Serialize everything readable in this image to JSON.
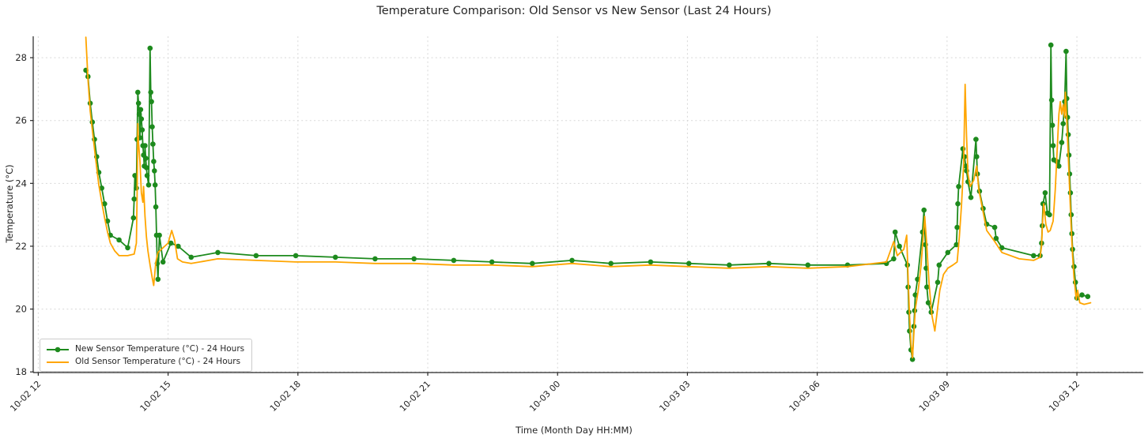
{
  "chart_data": {
    "type": "line",
    "title": "Temperature Comparison: Old Sensor vs New Sensor (Last 24 Hours)",
    "xlabel": "Time (Month Day HH:MM)",
    "ylabel": "Temperature (°C)",
    "x_unit": "minutes since 10-02 12:00",
    "xlim": [
      -7,
      1532
    ],
    "ylim": [
      17.98,
      28.68
    ],
    "grid": "dashed both axes",
    "legend_position": "lower left",
    "x_ticks": [
      {
        "t": 0,
        "label": "10-02 12"
      },
      {
        "t": 180,
        "label": "10-02 15"
      },
      {
        "t": 360,
        "label": "10-02 18"
      },
      {
        "t": 540,
        "label": "10-02 21"
      },
      {
        "t": 720,
        "label": "10-03 00"
      },
      {
        "t": 900,
        "label": "10-03 03"
      },
      {
        "t": 1080,
        "label": "10-03 06"
      },
      {
        "t": 1260,
        "label": "10-03 09"
      },
      {
        "t": 1440,
        "label": "10-03 12"
      }
    ],
    "y_ticks": [
      18,
      20,
      22,
      24,
      26,
      28
    ],
    "style": {
      "grid_color": "#d8d8d8",
      "axis_color": "#262626",
      "text_color": "#262626"
    },
    "series": [
      {
        "name": "New Sensor Temperature (°C) - 24 Hours",
        "color": "#1d8a1d",
        "marker": "circle",
        "data": [
          [
            66,
            27.6
          ],
          [
            69,
            27.4
          ],
          [
            72,
            26.55
          ],
          [
            75,
            25.95
          ],
          [
            78,
            25.4
          ],
          [
            81,
            24.85
          ],
          [
            84,
            24.35
          ],
          [
            88,
            23.85
          ],
          [
            92,
            23.35
          ],
          [
            96,
            22.8
          ],
          [
            100,
            22.35
          ],
          [
            112,
            22.2
          ],
          [
            124,
            21.95
          ],
          [
            132,
            22.9
          ],
          [
            133,
            23.5
          ],
          [
            134,
            24.25
          ],
          [
            136,
            23.85
          ],
          [
            137,
            25.4
          ],
          [
            138,
            26.9
          ],
          [
            139,
            26.55
          ],
          [
            140,
            26.2
          ],
          [
            141,
            25.45
          ],
          [
            142,
            26.35
          ],
          [
            143,
            26.05
          ],
          [
            144,
            25.7
          ],
          [
            145,
            25.2
          ],
          [
            146,
            24.9
          ],
          [
            147,
            24.55
          ],
          [
            148,
            25.2
          ],
          [
            149,
            24.8
          ],
          [
            150,
            24.5
          ],
          [
            151,
            24.25
          ],
          [
            153,
            23.95
          ],
          [
            155,
            28.3
          ],
          [
            156,
            26.9
          ],
          [
            157,
            26.6
          ],
          [
            158,
            25.8
          ],
          [
            159,
            25.25
          ],
          [
            160,
            24.7
          ],
          [
            161,
            24.4
          ],
          [
            162,
            23.95
          ],
          [
            163,
            23.25
          ],
          [
            164,
            22.35
          ],
          [
            165,
            21.45
          ],
          [
            166,
            20.95
          ],
          [
            168,
            22.35
          ],
          [
            173,
            21.5
          ],
          [
            184,
            22.1
          ],
          [
            194,
            22.0
          ],
          [
            212,
            21.65
          ],
          [
            249,
            21.8
          ],
          [
            302,
            21.7
          ],
          [
            357,
            21.7
          ],
          [
            412,
            21.65
          ],
          [
            467,
            21.6
          ],
          [
            521,
            21.6
          ],
          [
            576,
            21.55
          ],
          [
            629,
            21.5
          ],
          [
            685,
            21.45
          ],
          [
            740,
            21.55
          ],
          [
            794,
            21.45
          ],
          [
            849,
            21.5
          ],
          [
            902,
            21.45
          ],
          [
            958,
            21.4
          ],
          [
            1013,
            21.45
          ],
          [
            1067,
            21.4
          ],
          [
            1122,
            21.4
          ],
          [
            1176,
            21.45
          ],
          [
            1186,
            21.6
          ],
          [
            1188,
            22.45
          ],
          [
            1194,
            22.0
          ],
          [
            1205,
            21.4
          ],
          [
            1206,
            20.7
          ],
          [
            1207,
            19.9
          ],
          [
            1208,
            19.3
          ],
          [
            1210,
            18.7
          ],
          [
            1212,
            18.4
          ],
          [
            1214,
            19.45
          ],
          [
            1215,
            19.95
          ],
          [
            1216,
            20.45
          ],
          [
            1219,
            20.95
          ],
          [
            1226,
            22.45
          ],
          [
            1228,
            23.15
          ],
          [
            1230,
            22.05
          ],
          [
            1231,
            21.3
          ],
          [
            1232,
            20.7
          ],
          [
            1234,
            20.2
          ],
          [
            1238,
            19.9
          ],
          [
            1247,
            20.85
          ],
          [
            1249,
            21.4
          ],
          [
            1261,
            21.8
          ],
          [
            1273,
            22.05
          ],
          [
            1274,
            22.6
          ],
          [
            1275,
            23.35
          ],
          [
            1276,
            23.9
          ],
          [
            1282,
            25.1
          ],
          [
            1284,
            24.85
          ],
          [
            1286,
            24.55
          ],
          [
            1287,
            24.4
          ],
          [
            1289,
            24.05
          ],
          [
            1293,
            23.55
          ],
          [
            1300,
            25.4
          ],
          [
            1301,
            24.85
          ],
          [
            1302,
            24.3
          ],
          [
            1305,
            23.75
          ],
          [
            1310,
            23.2
          ],
          [
            1315,
            22.7
          ],
          [
            1326,
            22.6
          ],
          [
            1328,
            22.25
          ],
          [
            1336,
            21.95
          ],
          [
            1380,
            21.7
          ],
          [
            1389,
            21.7
          ],
          [
            1391,
            22.1
          ],
          [
            1392,
            22.65
          ],
          [
            1393,
            23.35
          ],
          [
            1396,
            23.7
          ],
          [
            1399,
            23.05
          ],
          [
            1402,
            23.0
          ],
          [
            1404,
            28.4
          ],
          [
            1405,
            26.65
          ],
          [
            1406,
            25.85
          ],
          [
            1407,
            25.2
          ],
          [
            1408,
            24.75
          ],
          [
            1412,
            24.7
          ],
          [
            1415,
            24.55
          ],
          [
            1419,
            25.3
          ],
          [
            1421,
            25.9
          ],
          [
            1423,
            26.6
          ],
          [
            1425,
            28.2
          ],
          [
            1426,
            26.7
          ],
          [
            1427,
            26.1
          ],
          [
            1428,
            25.55
          ],
          [
            1429,
            24.9
          ],
          [
            1430,
            24.3
          ],
          [
            1431,
            23.7
          ],
          [
            1432,
            23.0
          ],
          [
            1433,
            22.4
          ],
          [
            1434,
            21.9
          ],
          [
            1436,
            21.35
          ],
          [
            1438,
            20.85
          ],
          [
            1440,
            20.35
          ],
          [
            1447,
            20.45
          ],
          [
            1455,
            20.4
          ]
        ]
      },
      {
        "name": "Old Sensor Temperature (°C) - 24 Hours",
        "color": "#ffa500",
        "marker": "none",
        "data": [
          [
            66,
            28.65
          ],
          [
            69,
            27.3
          ],
          [
            72,
            26.3
          ],
          [
            75,
            25.7
          ],
          [
            78,
            25.1
          ],
          [
            81,
            24.5
          ],
          [
            84,
            23.95
          ],
          [
            88,
            23.4
          ],
          [
            92,
            22.9
          ],
          [
            96,
            22.45
          ],
          [
            100,
            22.1
          ],
          [
            106,
            21.85
          ],
          [
            112,
            21.7
          ],
          [
            124,
            21.7
          ],
          [
            133,
            21.75
          ],
          [
            136,
            22.1
          ],
          [
            137,
            23.6
          ],
          [
            138,
            25.9
          ],
          [
            139,
            25.3
          ],
          [
            141,
            24.7
          ],
          [
            143,
            23.7
          ],
          [
            145,
            23.4
          ],
          [
            146,
            23.9
          ],
          [
            148,
            22.95
          ],
          [
            150,
            22.3
          ],
          [
            152,
            21.85
          ],
          [
            155,
            21.4
          ],
          [
            158,
            21.0
          ],
          [
            160,
            20.75
          ],
          [
            163,
            21.5
          ],
          [
            166,
            21.8
          ],
          [
            180,
            22.1
          ],
          [
            185,
            22.5
          ],
          [
            189,
            22.2
          ],
          [
            193,
            21.6
          ],
          [
            200,
            21.5
          ],
          [
            212,
            21.45
          ],
          [
            249,
            21.6
          ],
          [
            302,
            21.55
          ],
          [
            357,
            21.5
          ],
          [
            412,
            21.5
          ],
          [
            467,
            21.45
          ],
          [
            521,
            21.45
          ],
          [
            576,
            21.4
          ],
          [
            629,
            21.4
          ],
          [
            685,
            21.35
          ],
          [
            740,
            21.45
          ],
          [
            794,
            21.35
          ],
          [
            849,
            21.4
          ],
          [
            902,
            21.35
          ],
          [
            958,
            21.3
          ],
          [
            1013,
            21.35
          ],
          [
            1067,
            21.3
          ],
          [
            1122,
            21.35
          ],
          [
            1176,
            21.5
          ],
          [
            1186,
            22.15
          ],
          [
            1191,
            21.7
          ],
          [
            1200,
            21.9
          ],
          [
            1204,
            22.35
          ],
          [
            1206,
            21.0
          ],
          [
            1208,
            19.8
          ],
          [
            1210,
            18.9
          ],
          [
            1212,
            18.45
          ],
          [
            1216,
            20.0
          ],
          [
            1220,
            20.6
          ],
          [
            1224,
            21.4
          ],
          [
            1229,
            22.95
          ],
          [
            1232,
            22.0
          ],
          [
            1235,
            20.8
          ],
          [
            1239,
            19.8
          ],
          [
            1243,
            19.3
          ],
          [
            1250,
            20.6
          ],
          [
            1255,
            21.1
          ],
          [
            1261,
            21.3
          ],
          [
            1268,
            21.4
          ],
          [
            1274,
            21.5
          ],
          [
            1277,
            22.3
          ],
          [
            1280,
            23.3
          ],
          [
            1283,
            24.6
          ],
          [
            1285,
            27.15
          ],
          [
            1287,
            25.5
          ],
          [
            1289,
            24.3
          ],
          [
            1292,
            23.9
          ],
          [
            1297,
            24.1
          ],
          [
            1301,
            24.55
          ],
          [
            1304,
            23.8
          ],
          [
            1309,
            23.2
          ],
          [
            1315,
            22.5
          ],
          [
            1326,
            22.15
          ],
          [
            1336,
            21.8
          ],
          [
            1360,
            21.6
          ],
          [
            1380,
            21.55
          ],
          [
            1389,
            21.65
          ],
          [
            1391,
            22.0
          ],
          [
            1392,
            22.6
          ],
          [
            1394,
            23.35
          ],
          [
            1397,
            22.7
          ],
          [
            1400,
            22.45
          ],
          [
            1403,
            22.5
          ],
          [
            1407,
            22.8
          ],
          [
            1410,
            23.8
          ],
          [
            1413,
            25.2
          ],
          [
            1415,
            26.2
          ],
          [
            1417,
            26.6
          ],
          [
            1419,
            26.2
          ],
          [
            1421,
            26.5
          ],
          [
            1423,
            26.1
          ],
          [
            1424,
            26.9
          ],
          [
            1426,
            26.0
          ],
          [
            1428,
            24.9
          ],
          [
            1430,
            23.8
          ],
          [
            1432,
            22.6
          ],
          [
            1434,
            21.7
          ],
          [
            1436,
            21.0
          ],
          [
            1437,
            20.8
          ],
          [
            1439,
            20.3
          ],
          [
            1441,
            20.6
          ],
          [
            1444,
            20.2
          ],
          [
            1450,
            20.15
          ],
          [
            1459,
            20.2
          ]
        ]
      }
    ]
  }
}
